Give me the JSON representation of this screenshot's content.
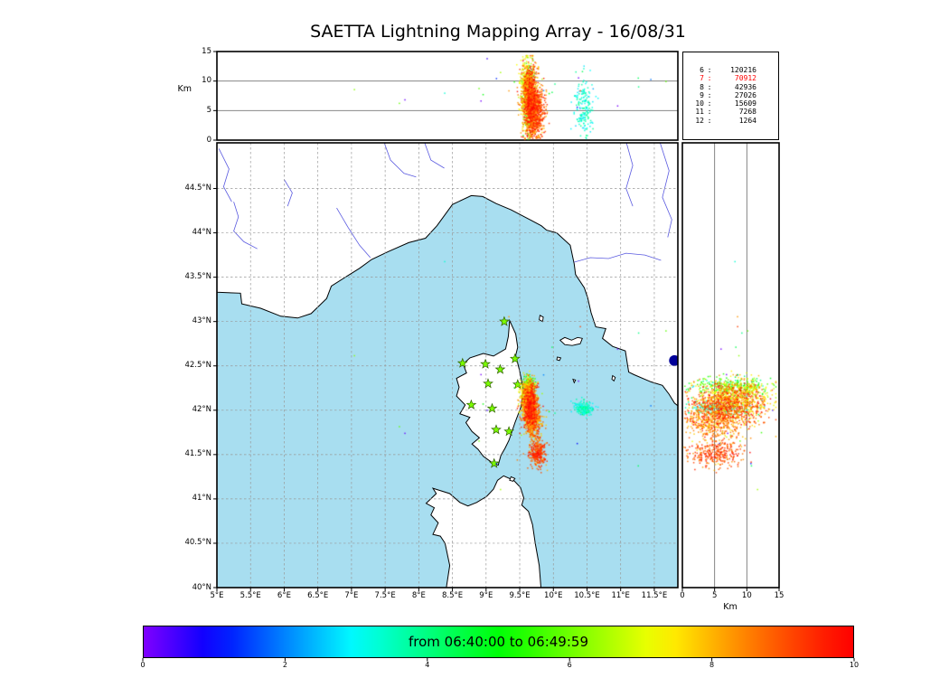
{
  "title": "SAETTA Lightning Mapping Array - 16/08/31",
  "colors": {
    "sea": "#a8def0",
    "land": "#ffffff",
    "coast": "#000000",
    "river": "#5a5ae0",
    "grid": "#999999",
    "panel_line": "#777777",
    "border": "#000000",
    "station_fill": "#7cfc00",
    "station_edge": "#2f6000",
    "lake": "#000099",
    "stat_highlight": "#ff0000"
  },
  "axes": {
    "top": {
      "ylabel": "Km",
      "yticks": [
        0,
        5,
        10,
        15
      ],
      "gridlines": [
        5,
        10
      ]
    },
    "map": {
      "lon_ticks": [
        {
          "v": 5,
          "label": "5°E"
        },
        {
          "v": 5.5,
          "label": "5.5°E"
        },
        {
          "v": 6,
          "label": "6°E"
        },
        {
          "v": 6.5,
          "label": "6.5°E"
        },
        {
          "v": 7,
          "label": "7°E"
        },
        {
          "v": 7.5,
          "label": "7.5°E"
        },
        {
          "v": 8,
          "label": "8°E"
        },
        {
          "v": 8.5,
          "label": "8.5°E"
        },
        {
          "v": 9,
          "label": "9°E"
        },
        {
          "v": 9.5,
          "label": "9.5°E"
        },
        {
          "v": 10,
          "label": "10°E"
        },
        {
          "v": 10.5,
          "label": "10.5°E"
        },
        {
          "v": 11,
          "label": "11°E"
        },
        {
          "v": 11.5,
          "label": "11.5°E"
        }
      ],
      "lat_ticks": [
        {
          "v": 44.5,
          "label": "44.5°N"
        },
        {
          "v": 44,
          "label": "44°N"
        },
        {
          "v": 43.5,
          "label": "43.5°N"
        },
        {
          "v": 43,
          "label": "43°N"
        },
        {
          "v": 42.5,
          "label": "42.5°N"
        },
        {
          "v": 42,
          "label": "42°N"
        },
        {
          "v": 41.5,
          "label": "41.5°N"
        },
        {
          "v": 41,
          "label": "41°N"
        },
        {
          "v": 40.5,
          "label": "40.5°N"
        },
        {
          "v": 40,
          "label": "40°N"
        }
      ]
    },
    "right": {
      "xlabel": "Km",
      "xticks": [
        0,
        5,
        10,
        15
      ],
      "gridlines": [
        5,
        10
      ]
    },
    "colorbar": {
      "label": "from 06:40:00 to 06:49:59",
      "ticks": [
        0,
        2,
        4,
        6,
        8,
        10
      ],
      "min": 0,
      "max": 10
    }
  },
  "stats": {
    "rows": [
      {
        "label": "6",
        "value": "120216",
        "highlight": false
      },
      {
        "label": "7",
        "value": "70912",
        "highlight": true
      },
      {
        "label": "8",
        "value": "42936",
        "highlight": false
      },
      {
        "label": "9",
        "value": "27026",
        "highlight": false
      },
      {
        "label": "10",
        "value": "15609",
        "highlight": false
      },
      {
        "label": "11",
        "value": "7268",
        "highlight": false
      },
      {
        "label": "12",
        "value": "1264",
        "highlight": false
      }
    ]
  },
  "chart_data": {
    "type": "scatter",
    "panels": [
      {
        "id": "altitude_vs_longitude",
        "x": "longitude_deg_E",
        "y": "altitude_km",
        "xlim": [
          5.0,
          11.85
        ],
        "ylim": [
          0,
          15
        ]
      },
      {
        "id": "map_latitude_vs_longitude",
        "x": "longitude_deg_E",
        "y": "latitude_deg_N",
        "xlim": [
          5.0,
          11.85
        ],
        "ylim": [
          40.0,
          45.015
        ]
      },
      {
        "id": "altitude_vs_latitude",
        "x": "altitude_km",
        "y": "latitude_deg_N",
        "xlim": [
          0,
          15
        ],
        "ylim": [
          40.0,
          45.015
        ]
      }
    ],
    "color_scale": {
      "label": "from 06:40:00 to 06:49:59",
      "min": 0,
      "max": 10
    },
    "clusters": [
      {
        "name": "north-band-green",
        "n": 280,
        "lon": [
          9.62,
          0.045
        ],
        "lat": [
          42.28,
          0.05
        ],
        "alt": [
          7.5,
          3.0
        ],
        "t": [
          5.3,
          0.9
        ]
      },
      {
        "name": "mid-orange",
        "n": 450,
        "lon": [
          9.6,
          0.05
        ],
        "lat": [
          42.15,
          0.1
        ],
        "alt": [
          8.5,
          2.6
        ],
        "t": [
          7.4,
          0.6
        ]
      },
      {
        "name": "core-red",
        "n": 1000,
        "lon": [
          9.65,
          0.06
        ],
        "lat": [
          42.04,
          0.12
        ],
        "alt": [
          6.5,
          3.0
        ],
        "t": [
          8.6,
          0.8
        ]
      },
      {
        "name": "lower-mid",
        "n": 350,
        "lon": [
          9.7,
          0.06
        ],
        "lat": [
          41.85,
          0.1
        ],
        "alt": [
          4.5,
          2.5
        ],
        "t": [
          8.2,
          0.6
        ]
      },
      {
        "name": "south-blob",
        "n": 320,
        "lon": [
          9.76,
          0.06
        ],
        "lat": [
          41.52,
          0.08
        ],
        "alt": [
          5.0,
          2.2
        ],
        "t": [
          9.0,
          0.5
        ]
      },
      {
        "name": "cyan-cell",
        "n": 180,
        "lon": [
          10.45,
          0.07
        ],
        "lat": [
          42.03,
          0.04
        ],
        "alt": [
          5.5,
          2.5
        ],
        "t": [
          3.3,
          0.4
        ]
      },
      {
        "name": "scattered-outliers",
        "n": 30,
        "lon": [
          9.2,
          1.3
        ],
        "lat": [
          42.0,
          0.6
        ],
        "alt": [
          9.0,
          2.0
        ],
        "t": [
          5.0,
          3.0
        ]
      }
    ],
    "stations_lonlat": [
      [
        9.27,
        43.0
      ],
      [
        9.43,
        42.58
      ],
      [
        8.65,
        42.53
      ],
      [
        8.99,
        42.52
      ],
      [
        9.21,
        42.46
      ],
      [
        9.03,
        42.3
      ],
      [
        9.47,
        42.29
      ],
      [
        8.78,
        42.06
      ],
      [
        9.09,
        42.02
      ],
      [
        9.15,
        41.78
      ],
      [
        9.34,
        41.76
      ],
      [
        9.12,
        41.4
      ]
    ],
    "lake_lonlat": [
      11.8,
      42.56
    ]
  },
  "map_geometry": {
    "mainland": [
      [
        5.0,
        43.33
      ],
      [
        5.35,
        43.32
      ],
      [
        5.37,
        43.2
      ],
      [
        5.65,
        43.15
      ],
      [
        5.95,
        43.06
      ],
      [
        6.2,
        43.04
      ],
      [
        6.4,
        43.09
      ],
      [
        6.63,
        43.26
      ],
      [
        6.7,
        43.4
      ],
      [
        6.95,
        43.52
      ],
      [
        7.12,
        43.6
      ],
      [
        7.3,
        43.7
      ],
      [
        7.55,
        43.79
      ],
      [
        7.85,
        43.89
      ],
      [
        8.1,
        43.94
      ],
      [
        8.27,
        44.08
      ],
      [
        8.5,
        44.32
      ],
      [
        8.78,
        44.42
      ],
      [
        8.95,
        44.41
      ],
      [
        9.15,
        44.33
      ],
      [
        9.37,
        44.26
      ],
      [
        9.65,
        44.15
      ],
      [
        9.82,
        44.08
      ],
      [
        9.9,
        44.03
      ],
      [
        10.05,
        44.0
      ],
      [
        10.25,
        43.86
      ],
      [
        10.31,
        43.65
      ],
      [
        10.33,
        43.53
      ],
      [
        10.46,
        43.38
      ],
      [
        10.51,
        43.27
      ],
      [
        10.56,
        43.1
      ],
      [
        10.63,
        42.94
      ],
      [
        10.78,
        42.92
      ],
      [
        10.73,
        42.81
      ],
      [
        10.88,
        42.72
      ],
      [
        11.07,
        42.67
      ],
      [
        11.1,
        42.52
      ],
      [
        11.12,
        42.43
      ],
      [
        11.2,
        42.4
      ],
      [
        11.45,
        42.32
      ],
      [
        11.62,
        42.28
      ],
      [
        11.72,
        42.18
      ],
      [
        11.8,
        42.08
      ],
      [
        11.9,
        42.02
      ],
      [
        11.9,
        45.1
      ],
      [
        4.95,
        45.1
      ]
    ],
    "corsica": [
      [
        9.35,
        43.01
      ],
      [
        9.44,
        42.86
      ],
      [
        9.47,
        42.71
      ],
      [
        9.44,
        42.62
      ],
      [
        9.5,
        42.44
      ],
      [
        9.55,
        42.24
      ],
      [
        9.52,
        42.04
      ],
      [
        9.43,
        41.86
      ],
      [
        9.34,
        41.66
      ],
      [
        9.28,
        41.57
      ],
      [
        9.22,
        41.49
      ],
      [
        9.18,
        41.38
      ],
      [
        9.07,
        41.42
      ],
      [
        8.96,
        41.48
      ],
      [
        8.88,
        41.56
      ],
      [
        8.79,
        41.62
      ],
      [
        8.9,
        41.69
      ],
      [
        8.79,
        41.76
      ],
      [
        8.7,
        41.86
      ],
      [
        8.76,
        41.92
      ],
      [
        8.61,
        41.96
      ],
      [
        8.69,
        42.06
      ],
      [
        8.56,
        42.16
      ],
      [
        8.6,
        42.26
      ],
      [
        8.56,
        42.36
      ],
      [
        8.71,
        42.42
      ],
      [
        8.66,
        42.52
      ],
      [
        8.76,
        42.59
      ],
      [
        8.96,
        42.64
      ],
      [
        9.11,
        42.61
      ],
      [
        9.29,
        42.69
      ],
      [
        9.33,
        42.83
      ]
    ],
    "sardinia": [
      [
        8.4,
        39.95
      ],
      [
        8.46,
        40.25
      ],
      [
        8.39,
        40.5
      ],
      [
        8.32,
        40.58
      ],
      [
        8.21,
        40.6
      ],
      [
        8.29,
        40.73
      ],
      [
        8.18,
        40.82
      ],
      [
        8.23,
        40.9
      ],
      [
        8.11,
        40.95
      ],
      [
        8.26,
        41.06
      ],
      [
        8.21,
        41.12
      ],
      [
        8.46,
        41.06
      ],
      [
        8.61,
        40.96
      ],
      [
        8.73,
        40.92
      ],
      [
        8.86,
        40.96
      ],
      [
        9.01,
        41.03
      ],
      [
        9.11,
        41.11
      ],
      [
        9.17,
        41.21
      ],
      [
        9.26,
        41.26
      ],
      [
        9.41,
        41.21
      ],
      [
        9.51,
        41.13
      ],
      [
        9.56,
        41.01
      ],
      [
        9.53,
        40.93
      ],
      [
        9.63,
        40.86
      ],
      [
        9.69,
        40.71
      ],
      [
        9.73,
        40.5
      ],
      [
        9.79,
        40.25
      ],
      [
        9.82,
        39.95
      ]
    ],
    "islands": [
      [
        [
          10.1,
          42.79
        ],
        [
          10.17,
          42.82
        ],
        [
          10.27,
          42.79
        ],
        [
          10.36,
          42.82
        ],
        [
          10.43,
          42.81
        ],
        [
          10.4,
          42.75
        ],
        [
          10.28,
          42.73
        ],
        [
          10.17,
          42.74
        ]
      ],
      [
        [
          9.8,
          43.07
        ],
        [
          9.85,
          43.05
        ],
        [
          9.84,
          43.0
        ],
        [
          9.79,
          43.02
        ]
      ],
      [
        [
          10.06,
          42.6
        ],
        [
          10.11,
          42.59
        ],
        [
          10.09,
          42.56
        ],
        [
          10.05,
          42.57
        ]
      ],
      [
        [
          10.29,
          42.35
        ],
        [
          10.33,
          42.34
        ],
        [
          10.31,
          42.31
        ]
      ],
      [
        [
          10.88,
          42.39
        ],
        [
          10.92,
          42.37
        ],
        [
          10.9,
          42.33
        ],
        [
          10.87,
          42.35
        ]
      ],
      [
        [
          9.37,
          41.25
        ],
        [
          9.43,
          41.23
        ],
        [
          9.4,
          41.2
        ],
        [
          9.35,
          41.21
        ]
      ]
    ],
    "rivers": [
      [
        [
          5.03,
          44.95
        ],
        [
          5.18,
          44.72
        ],
        [
          5.1,
          44.52
        ],
        [
          5.22,
          44.35
        ]
      ],
      [
        [
          5.25,
          44.35
        ],
        [
          5.32,
          44.18
        ],
        [
          5.25,
          44.02
        ],
        [
          5.4,
          43.9
        ],
        [
          5.6,
          43.82
        ]
      ],
      [
        [
          6.0,
          44.6
        ],
        [
          6.12,
          44.45
        ],
        [
          6.05,
          44.3
        ]
      ],
      [
        [
          6.78,
          44.28
        ],
        [
          6.95,
          44.06
        ],
        [
          7.12,
          43.86
        ],
        [
          7.28,
          43.72
        ]
      ],
      [
        [
          7.48,
          45.03
        ],
        [
          7.58,
          44.82
        ],
        [
          7.78,
          44.67
        ],
        [
          7.96,
          44.63
        ]
      ],
      [
        [
          8.08,
          45.03
        ],
        [
          8.18,
          44.82
        ],
        [
          8.38,
          44.73
        ]
      ],
      [
        [
          10.31,
          43.67
        ],
        [
          10.55,
          43.72
        ],
        [
          10.82,
          43.71
        ],
        [
          11.08,
          43.77
        ],
        [
          11.36,
          43.75
        ],
        [
          11.6,
          43.69
        ]
      ],
      [
        [
          11.08,
          45.03
        ],
        [
          11.18,
          44.76
        ],
        [
          11.08,
          44.5
        ],
        [
          11.18,
          44.3
        ]
      ],
      [
        [
          11.58,
          45.03
        ],
        [
          11.72,
          44.7
        ],
        [
          11.62,
          44.4
        ],
        [
          11.76,
          44.15
        ],
        [
          11.7,
          43.95
        ]
      ]
    ]
  }
}
